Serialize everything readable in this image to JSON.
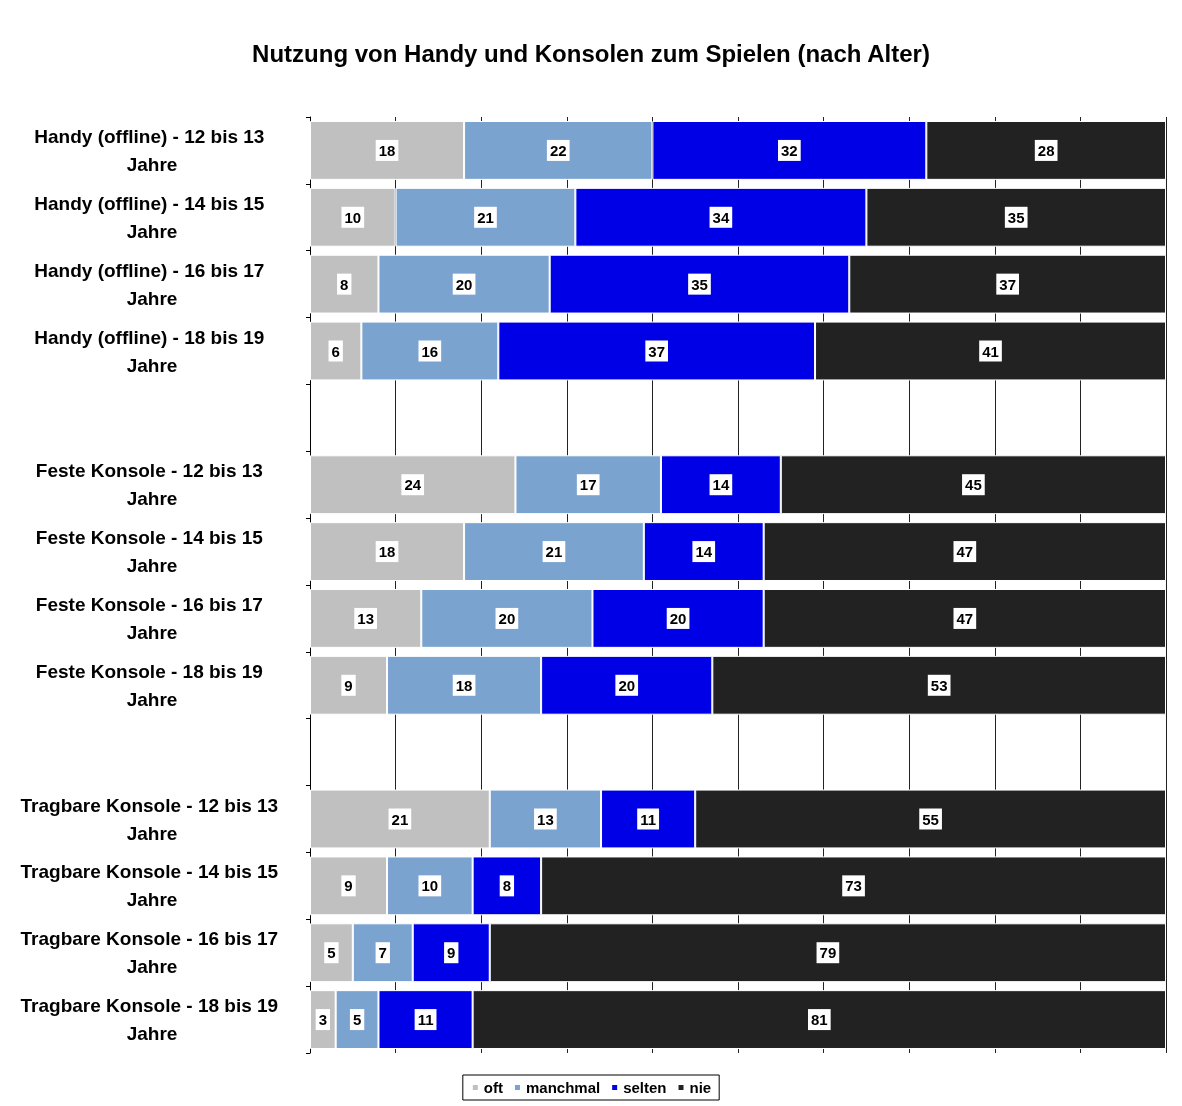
{
  "chart_data": {
    "type": "bar",
    "orientation": "horizontal",
    "stacked": true,
    "title": "Nutzung von Handy und Konsolen zum Spielen (nach Alter)",
    "categories": [
      "Handy (offline) - 12 bis 13 Jahre",
      "Handy (offline) - 14 bis 15 Jahre",
      "Handy (offline) - 16 bis 17 Jahre",
      "Handy (offline) - 18 bis 19 Jahre",
      null,
      "Feste Konsole - 12 bis 13 Jahre",
      "Feste Konsole - 14 bis 15 Jahre",
      "Feste Konsole - 16 bis 17 Jahre",
      "Feste Konsole - 18 bis 19 Jahre",
      null,
      "Tragbare Konsole - 12 bis 13 Jahre",
      "Tragbare Konsole - 14 bis 15 Jahre",
      "Tragbare Konsole - 16 bis 17 Jahre",
      "Tragbare Konsole - 18 bis 19 Jahre"
    ],
    "series": [
      {
        "name": "oft",
        "color": "#c0c0c0",
        "values": [
          18,
          10,
          8,
          6,
          null,
          24,
          18,
          13,
          9,
          null,
          21,
          9,
          5,
          3
        ]
      },
      {
        "name": "manchmal",
        "color": "#7ba3cf",
        "values": [
          22,
          21,
          20,
          16,
          null,
          17,
          21,
          20,
          18,
          null,
          13,
          10,
          7,
          5
        ]
      },
      {
        "name": "selten",
        "color": "#0000e6",
        "values": [
          32,
          34,
          35,
          37,
          null,
          14,
          14,
          20,
          20,
          null,
          11,
          8,
          9,
          11
        ]
      },
      {
        "name": "nie",
        "color": "#222222",
        "values": [
          28,
          35,
          37,
          41,
          null,
          45,
          47,
          47,
          53,
          null,
          55,
          73,
          79,
          81
        ]
      }
    ],
    "xlim": [
      0,
      100
    ],
    "tick_labels": "y",
    "grid": "x",
    "data_labels": true,
    "legend": "bottom"
  }
}
